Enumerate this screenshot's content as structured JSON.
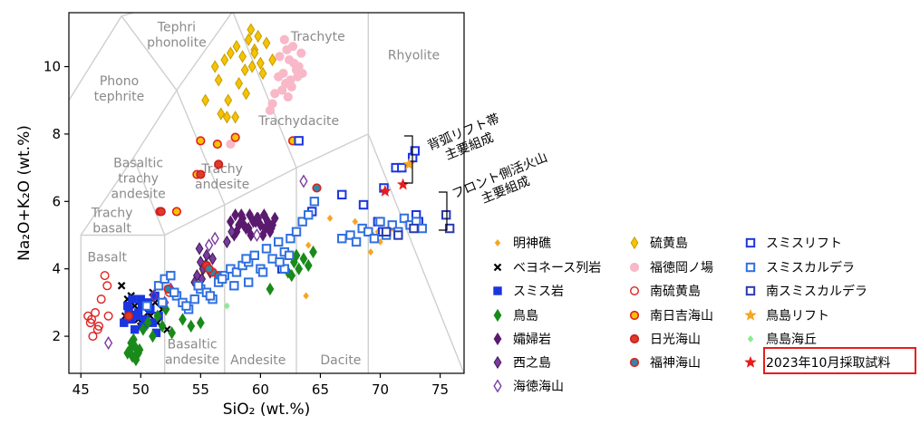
{
  "chart_data": {
    "type": "scatter",
    "xlabel": "SiO₂ (wt.%)",
    "ylabel": "Na₂O+K₂O (wt.%)",
    "xlim": [
      44,
      77
    ],
    "ylim": [
      0.9,
      11.6
    ],
    "xticks": [
      45,
      50,
      55,
      60,
      65,
      70,
      75
    ],
    "yticks": [
      2,
      4,
      6,
      8,
      10
    ],
    "grid": false,
    "legend_position": "right",
    "region_labels": [
      {
        "lines": [
          "Tephri",
          "phonolite"
        ],
        "x": 53,
        "y": 10.95
      },
      {
        "lines": [
          "Phono",
          "tephrite"
        ],
        "x": 48.2,
        "y": 9.35
      },
      {
        "lines": [
          "Trachyte"
        ],
        "x": 64.8,
        "y": 10.9
      },
      {
        "lines": [
          "Rhyolite"
        ],
        "x": 72.8,
        "y": 10.35
      },
      {
        "lines": [
          "Trachydacite"
        ],
        "x": 63.2,
        "y": 8.4
      },
      {
        "lines": [
          "Basaltic",
          "trachy",
          "andesite"
        ],
        "x": 49.8,
        "y": 6.7
      },
      {
        "lines": [
          "Trachy",
          "andesite"
        ],
        "x": 56.8,
        "y": 6.75
      },
      {
        "lines": [
          "Trachy",
          "basalt"
        ],
        "x": 47.6,
        "y": 5.45
      },
      {
        "lines": [
          "Basalt"
        ],
        "x": 47.2,
        "y": 4.35
      },
      {
        "lines": [
          "Basaltic",
          "andesite"
        ],
        "x": 54.3,
        "y": 1.55
      },
      {
        "lines": [
          "Andesite"
        ],
        "x": 59.8,
        "y": 1.3
      },
      {
        "lines": [
          "Dacite"
        ],
        "x": 66.7,
        "y": 1.3
      }
    ],
    "boundaries": [
      [
        [
          45,
          0.9
        ],
        [
          45,
          5.0
        ],
        [
          52,
          5.0
        ],
        [
          52,
          0.9
        ]
      ],
      [
        [
          57,
          0.9
        ],
        [
          57,
          5.9
        ],
        [
          63,
          7.0
        ],
        [
          63,
          0.9
        ]
      ],
      [
        [
          52,
          5.0
        ],
        [
          57,
          5.9
        ]
      ],
      [
        [
          63,
          7.0
        ],
        [
          69,
          8.0
        ],
        [
          69,
          0.9
        ]
      ],
      [
        [
          45,
          5.0
        ],
        [
          49.4,
          7.3
        ],
        [
          53,
          9.3
        ],
        [
          57.6,
          11.6
        ]
      ],
      [
        [
          49.4,
          7.3
        ],
        [
          52,
          5.0
        ]
      ],
      [
        [
          53,
          9.3
        ],
        [
          57,
          5.9
        ]
      ],
      [
        [
          52.5,
          14.0
        ],
        [
          57.6,
          11.7
        ],
        [
          63,
          7.0
        ]
      ],
      [
        [
          69,
          8.0
        ],
        [
          69,
          11.6
        ]
      ],
      [
        [
          69,
          8.0
        ],
        [
          77,
          0.9
        ]
      ],
      [
        [
          44,
          9.0
        ],
        [
          48.4,
          11.5
        ],
        [
          49.4,
          11.6
        ]
      ],
      [
        [
          48.4,
          11.5
        ],
        [
          53,
          9.3
        ]
      ]
    ],
    "series": [
      {
        "name": "明神礁",
        "marker": "diamond-small",
        "face": "#f5a623",
        "edge": "#f5a623",
        "x": [
          67.9,
          69.2,
          69.4,
          69.8,
          70.0,
          64.0,
          71.0,
          65.8,
          63.8,
          58.3,
          55.2
        ],
        "y": [
          5.4,
          4.5,
          5.0,
          5.1,
          4.8,
          4.7,
          5.2,
          5.5,
          3.2,
          4.0,
          3.9
        ]
      },
      {
        "name": "ベヨネース列岩",
        "marker": "x",
        "face": "#000000",
        "edge": "#000000",
        "x": [
          48.4,
          48.7,
          49.2,
          49.5,
          49.8,
          50.2,
          50.6,
          51.0,
          51.4,
          51.8,
          52.2,
          48.9,
          50.0,
          51.2,
          49.4,
          50.8
        ],
        "y": [
          3.5,
          2.6,
          3.2,
          2.9,
          2.5,
          3.0,
          2.7,
          3.3,
          2.4,
          2.8,
          2.2,
          3.1,
          2.3,
          3.0,
          2.7,
          2.6
        ]
      },
      {
        "name": "スミス岩",
        "marker": "square",
        "face": "#1a35e0",
        "edge": "#1a35e0",
        "x": [
          48.6,
          49.0,
          49.3,
          49.7,
          50.1,
          50.4,
          50.8,
          51.2,
          51.5,
          49.5,
          50.2,
          51.0,
          48.9,
          50.6,
          49.8,
          51.3,
          50.0,
          49.2
        ],
        "y": [
          2.4,
          2.8,
          3.1,
          2.6,
          2.9,
          2.5,
          2.8,
          3.2,
          2.6,
          2.2,
          2.3,
          2.4,
          2.9,
          3.0,
          2.7,
          2.1,
          3.1,
          2.5
        ]
      },
      {
        "name": "鳥島",
        "marker": "diamond",
        "face": "#1a8a1a",
        "edge": "#1a8a1a",
        "x": [
          48.9,
          49.1,
          49.3,
          49.5,
          49.7,
          49.9,
          49.2,
          49.6,
          49.4,
          49.8,
          50.2,
          50.6,
          51.0,
          51.4,
          51.8,
          52.1,
          52.6,
          53.5,
          54.2,
          55.0,
          60.8,
          62.3,
          62.8,
          63.2,
          63.6,
          64.0,
          64.4,
          62.6,
          63.0
        ],
        "y": [
          1.5,
          1.6,
          1.4,
          1.7,
          1.5,
          1.6,
          1.8,
          1.3,
          1.9,
          1.5,
          2.2,
          2.4,
          2.0,
          2.6,
          2.3,
          2.8,
          2.1,
          2.5,
          2.3,
          2.4,
          3.4,
          3.9,
          4.2,
          4.0,
          4.3,
          4.1,
          4.5,
          3.8,
          4.4
        ]
      },
      {
        "name": "孀婦岩",
        "marker": "diamond",
        "face": "#5a1a6e",
        "edge": "#5a1a6e",
        "x": [
          57.5,
          57.9,
          58.2,
          58.5,
          58.8,
          59.1,
          59.4,
          59.7,
          60.0,
          60.3,
          60.6,
          60.9,
          61.2,
          58.0,
          58.6,
          59.2,
          59.8,
          60.4,
          61.0,
          57.8,
          58.4,
          59.0,
          59.6,
          60.2,
          60.8
        ],
        "y": [
          5.4,
          5.6,
          5.3,
          5.5,
          5.2,
          5.6,
          5.4,
          5.5,
          5.3,
          5.6,
          5.4,
          5.2,
          5.5,
          5.1,
          5.3,
          5.0,
          5.5,
          5.2,
          5.3,
          5.0,
          5.6,
          5.2,
          5.4,
          5.0,
          5.1
        ]
      },
      {
        "name": "西之島",
        "marker": "diamond",
        "face": "#7b3aa0",
        "edge": "#3a1a50",
        "x": [
          54.7,
          55.0,
          55.2,
          55.5,
          55.8,
          54.9,
          55.4,
          55.1,
          57.2,
          57.6,
          56.0,
          54.5
        ],
        "y": [
          3.8,
          4.2,
          4.0,
          4.4,
          3.9,
          4.6,
          4.1,
          3.7,
          4.8,
          5.1,
          4.3,
          3.6
        ]
      },
      {
        "name": "海徳海山",
        "marker": "diamond-open",
        "face": "none",
        "edge": "#7b3aa0",
        "x": [
          47.3,
          51.1,
          52.5,
          55.7,
          56.2,
          59.7,
          63.6,
          52.0
        ],
        "y": [
          1.8,
          3.2,
          3.4,
          4.7,
          4.9,
          5.0,
          6.6,
          3.0
        ]
      },
      {
        "name": "硫黄島",
        "marker": "diamond",
        "face": "#f5c400",
        "edge": "#c79a00",
        "x": [
          56.2,
          56.5,
          57.0,
          57.5,
          58.0,
          58.5,
          59.0,
          59.5,
          60.0,
          60.5,
          59.2,
          59.8,
          58.2,
          58.7,
          60.2,
          58.8,
          59.3,
          57.3,
          56.7,
          57.9,
          61.0,
          59.5
        ],
        "y": [
          10.0,
          9.6,
          10.2,
          10.4,
          10.6,
          10.3,
          10.8,
          10.5,
          10.1,
          10.7,
          11.1,
          10.9,
          9.5,
          9.9,
          9.8,
          9.2,
          10.0,
          9.0,
          8.6,
          8.5,
          10.2,
          10.4
        ],
        "x2": [
          55.4,
          57.2
        ],
        "y2": [
          9.0,
          8.5
        ]
      },
      {
        "name": "福徳岡ノ場",
        "marker": "circle",
        "face": "#f8b8c8",
        "edge": "#f8b8c8",
        "x": [
          61.6,
          61.9,
          62.2,
          62.5,
          62.8,
          63.1,
          63.4,
          61.8,
          62.4,
          63.0,
          62.1,
          62.7,
          63.2,
          61.5,
          62.0,
          62.6,
          61.2,
          63.5,
          62.3,
          61.0,
          57.5,
          60.8
        ],
        "y": [
          10.3,
          9.8,
          10.5,
          9.6,
          10.1,
          9.7,
          10.4,
          9.3,
          10.2,
          9.9,
          9.5,
          10.6,
          10.0,
          9.7,
          10.8,
          9.4,
          9.2,
          9.8,
          9.1,
          8.9,
          7.7,
          8.7
        ]
      },
      {
        "name": "南硫黄島",
        "marker": "circle-open",
        "face": "none",
        "edge": "#e02020",
        "x": [
          45.6,
          45.9,
          46.2,
          46.5,
          46.0,
          46.4,
          45.8,
          46.7,
          47.3,
          47.0,
          52.4,
          47.2
        ],
        "y": [
          2.6,
          2.5,
          2.7,
          2.3,
          2.0,
          2.2,
          2.4,
          3.1,
          2.6,
          3.8,
          3.3,
          3.5
        ]
      },
      {
        "name": "南日吉海山",
        "marker": "circle",
        "face": "#f5c400",
        "edge": "#e02020",
        "x": [
          55.0,
          54.7,
          56.4,
          57.9,
          62.7,
          53.0,
          51.6
        ],
        "y": [
          7.8,
          6.8,
          7.7,
          7.9,
          7.8,
          5.7,
          5.7
        ]
      },
      {
        "name": "日光海山",
        "marker": "circle",
        "face": "#e03a2a",
        "edge": "#c82020",
        "x": [
          51.7,
          55.0,
          56.5,
          49.0,
          55.5
        ],
        "y": [
          5.7,
          6.8,
          7.1,
          2.6,
          4.1
        ]
      },
      {
        "name": "福神海山",
        "marker": "circle",
        "face": "#2a8aa8",
        "edge": "#e02020",
        "x": [
          56.0,
          64.7,
          55.7,
          56.5,
          52.3
        ],
        "y": [
          3.9,
          6.4,
          4.0,
          3.8,
          3.4
        ]
      },
      {
        "name": "スミスリフト",
        "marker": "square-open",
        "face": "#ffffff",
        "edge": "#1a35e0",
        "x": [
          70.3,
          71.3,
          71.8,
          72.7,
          72.9,
          63.2,
          66.8,
          68.6,
          69.8,
          70.2,
          73.0,
          73.2,
          61.8,
          64.3
        ],
        "y": [
          6.4,
          7.0,
          7.0,
          7.3,
          7.5,
          7.8,
          6.2,
          5.9,
          5.4,
          5.1,
          5.6,
          5.4,
          4.0,
          5.7
        ]
      },
      {
        "name": "スミスカルデラ",
        "marker": "square-open",
        "face": "#ffffff",
        "edge": "#3070e0",
        "x": [
          50.5,
          51.5,
          52.0,
          52.5,
          53.0,
          53.5,
          54.0,
          54.5,
          55.0,
          55.5,
          56.0,
          56.5,
          57.0,
          57.5,
          58.0,
          58.5,
          59.0,
          59.5,
          60.0,
          60.5,
          61.0,
          61.5,
          62.0,
          62.5,
          63.0,
          51.8,
          52.8,
          53.8,
          54.8,
          55.8,
          56.8,
          57.8,
          58.8,
          63.5,
          64.0,
          64.5,
          66.8,
          67.5,
          68.0,
          68.5,
          69.0,
          69.5,
          70.0,
          70.5,
          71.0,
          71.5,
          72.0,
          72.5,
          73.0,
          73.5,
          62.0,
          60.2,
          59.0,
          61.6,
          62.4
        ],
        "y": [
          2.9,
          3.5,
          3.7,
          3.8,
          3.2,
          3.0,
          2.8,
          3.1,
          3.4,
          3.3,
          3.1,
          3.6,
          3.8,
          4.0,
          3.9,
          4.1,
          4.2,
          4.4,
          4.0,
          4.6,
          4.3,
          4.8,
          4.5,
          4.9,
          5.1,
          3.0,
          3.3,
          2.9,
          3.5,
          3.2,
          3.7,
          3.5,
          4.3,
          5.4,
          5.6,
          6.0,
          4.9,
          5.0,
          4.8,
          5.2,
          5.1,
          4.9,
          5.4,
          5.0,
          5.3,
          5.1,
          5.5,
          5.3,
          5.4,
          5.2,
          4.0,
          3.9,
          3.6,
          4.2,
          4.4
        ]
      },
      {
        "name": "南スミスカルデラ",
        "marker": "square-open",
        "face": "#ffffff",
        "edge": "#2a3ab0",
        "x": [
          70.5,
          71.5,
          72.8,
          75.5,
          75.8
        ],
        "y": [
          5.1,
          5.0,
          5.2,
          5.6,
          5.2
        ]
      },
      {
        "name": "鳥島リフト",
        "marker": "star",
        "face": "#f5a623",
        "edge": "#f5a623",
        "x": [
          72.4
        ],
        "y": [
          7.1
        ]
      },
      {
        "name": "鳥島海丘",
        "marker": "diamond-small",
        "face": "#90e890",
        "edge": "#90e890",
        "x": [
          57.2
        ],
        "y": [
          2.9
        ]
      },
      {
        "name": "2023年10月採取試料",
        "marker": "star",
        "face": "#e81c1c",
        "edge": "#e81c1c",
        "x": [
          70.4,
          71.9
        ],
        "y": [
          6.3,
          6.5
        ]
      }
    ],
    "annotations": [
      {
        "lines": [
          "背弧リフト帯",
          "主要組成"
        ]
      },
      {
        "lines": [
          "フロント側活火山",
          "主要組成"
        ]
      }
    ]
  }
}
